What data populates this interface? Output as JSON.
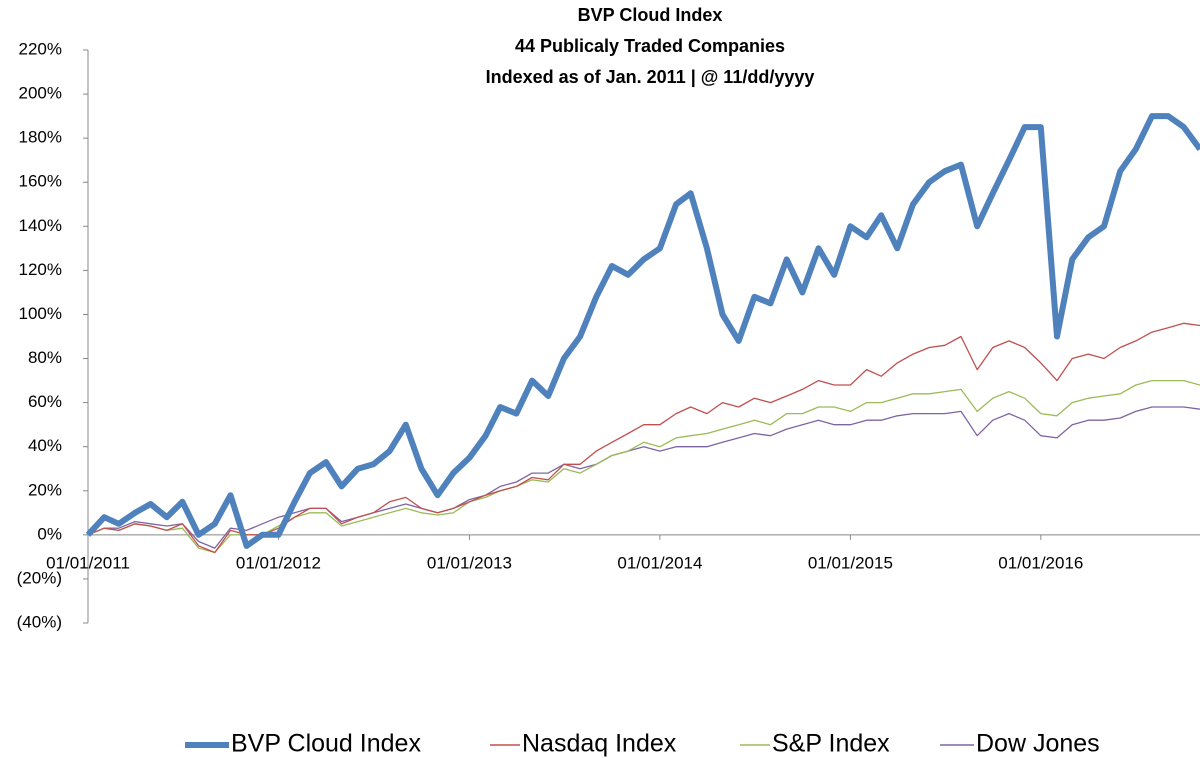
{
  "chart_data": {
    "type": "line",
    "title": [
      "BVP Cloud Index",
      "44 Publicaly Traded Companies",
      "Indexed as of Jan. 2011 | @ 11/dd/yyyy"
    ],
    "x": [
      "2011-01-01",
      "2011-02-01",
      "2011-03-01",
      "2011-04-01",
      "2011-05-01",
      "2011-06-01",
      "2011-07-01",
      "2011-08-01",
      "2011-09-01",
      "2011-10-01",
      "2011-11-01",
      "2011-12-01",
      "2012-01-01",
      "2012-02-01",
      "2012-03-01",
      "2012-04-01",
      "2012-05-01",
      "2012-06-01",
      "2012-07-01",
      "2012-08-01",
      "2012-09-01",
      "2012-10-01",
      "2012-11-01",
      "2012-12-01",
      "2013-01-01",
      "2013-02-01",
      "2013-03-01",
      "2013-04-01",
      "2013-05-01",
      "2013-06-01",
      "2013-07-01",
      "2013-08-01",
      "2013-09-01",
      "2013-10-01",
      "2013-11-01",
      "2013-12-01",
      "2014-01-01",
      "2014-02-01",
      "2014-03-01",
      "2014-04-01",
      "2014-05-01",
      "2014-06-01",
      "2014-07-01",
      "2014-08-01",
      "2014-09-01",
      "2014-10-01",
      "2014-11-01",
      "2014-12-01",
      "2015-01-01",
      "2015-02-01",
      "2015-03-01",
      "2015-04-01",
      "2015-05-01",
      "2015-06-01",
      "2015-07-01",
      "2015-08-01",
      "2015-09-01",
      "2015-10-01",
      "2015-11-01",
      "2015-12-01",
      "2016-01-01",
      "2016-02-01",
      "2016-03-01",
      "2016-04-01",
      "2016-05-01",
      "2016-06-01",
      "2016-07-01",
      "2016-08-01",
      "2016-09-01",
      "2016-10-01",
      "2016-11-01"
    ],
    "series": [
      {
        "name": "BVP Cloud Index",
        "color": "#4f81bd",
        "values": [
          0,
          8,
          5,
          10,
          14,
          8,
          15,
          0,
          5,
          18,
          -5,
          0,
          0,
          15,
          28,
          33,
          22,
          30,
          32,
          38,
          50,
          30,
          18,
          28,
          35,
          45,
          58,
          55,
          70,
          63,
          80,
          90,
          108,
          122,
          118,
          125,
          130,
          150,
          155,
          130,
          100,
          88,
          108,
          105,
          125,
          110,
          130,
          118,
          140,
          135,
          145,
          130,
          150,
          160,
          165,
          168,
          140,
          155,
          170,
          185,
          185,
          90,
          125,
          135,
          140,
          165,
          175,
          190,
          190,
          185,
          175
        ]
      },
      {
        "name": "Nasdaq Index",
        "color": "#c0504d",
        "values": [
          0,
          3,
          2,
          5,
          4,
          2,
          5,
          -5,
          -8,
          2,
          0,
          0,
          3,
          8,
          12,
          12,
          5,
          8,
          10,
          15,
          17,
          12,
          10,
          12,
          15,
          18,
          20,
          22,
          26,
          25,
          32,
          32,
          38,
          42,
          46,
          50,
          50,
          55,
          58,
          55,
          60,
          58,
          62,
          60,
          63,
          66,
          70,
          68,
          68,
          75,
          72,
          78,
          82,
          85,
          86,
          90,
          75,
          85,
          88,
          85,
          78,
          70,
          80,
          82,
          80,
          85,
          88,
          92,
          94,
          96,
          95
        ]
      },
      {
        "name": "S&P Index",
        "color": "#9bbb59",
        "values": [
          0,
          3,
          2,
          5,
          4,
          2,
          3,
          -6,
          -8,
          0,
          0,
          0,
          4,
          8,
          10,
          10,
          4,
          6,
          8,
          10,
          12,
          10,
          9,
          10,
          15,
          17,
          20,
          22,
          25,
          24,
          30,
          28,
          32,
          36,
          38,
          42,
          40,
          44,
          45,
          46,
          48,
          50,
          52,
          50,
          55,
          55,
          58,
          58,
          56,
          60,
          60,
          62,
          64,
          64,
          65,
          66,
          56,
          62,
          65,
          62,
          55,
          54,
          60,
          62,
          63,
          64,
          68,
          70,
          70,
          70,
          68
        ]
      },
      {
        "name": "Dow Jones",
        "color": "#8064a2",
        "values": [
          0,
          3,
          3,
          6,
          5,
          4,
          5,
          -3,
          -6,
          3,
          2,
          5,
          8,
          10,
          12,
          12,
          6,
          8,
          10,
          12,
          14,
          12,
          10,
          12,
          16,
          18,
          22,
          24,
          28,
          28,
          32,
          30,
          32,
          36,
          38,
          40,
          38,
          40,
          40,
          40,
          42,
          44,
          46,
          45,
          48,
          50,
          52,
          50,
          50,
          52,
          52,
          54,
          55,
          55,
          55,
          56,
          45,
          52,
          55,
          52,
          45,
          44,
          50,
          52,
          52,
          53,
          56,
          58,
          58,
          58,
          57
        ]
      }
    ],
    "xlim": [
      "2011-01-01",
      "2016-11-01"
    ],
    "xticks": [
      {
        "value": "2011-01-01",
        "label": "01/01/2011"
      },
      {
        "value": "2012-01-01",
        "label": "01/01/2012"
      },
      {
        "value": "2013-01-01",
        "label": "01/01/2013"
      },
      {
        "value": "2014-01-01",
        "label": "01/01/2014"
      },
      {
        "value": "2015-01-01",
        "label": "01/01/2015"
      },
      {
        "value": "2016-01-01",
        "label": "01/01/2016"
      }
    ],
    "ylim": [
      -40,
      220
    ],
    "yticks": [
      {
        "value": -40,
        "label": "(40%)"
      },
      {
        "value": -20,
        "label": "(20%)"
      },
      {
        "value": 0,
        "label": "0%"
      },
      {
        "value": 20,
        "label": "20%"
      },
      {
        "value": 40,
        "label": "40%"
      },
      {
        "value": 60,
        "label": "60%"
      },
      {
        "value": 80,
        "label": "80%"
      },
      {
        "value": 100,
        "label": "100%"
      },
      {
        "value": 120,
        "label": "120%"
      },
      {
        "value": 140,
        "label": "140%"
      },
      {
        "value": 160,
        "label": "160%"
      },
      {
        "value": 180,
        "label": "180%"
      },
      {
        "value": 200,
        "label": "200%"
      },
      {
        "value": 220,
        "label": "220%"
      }
    ],
    "grid": false,
    "legend": "bottom"
  }
}
